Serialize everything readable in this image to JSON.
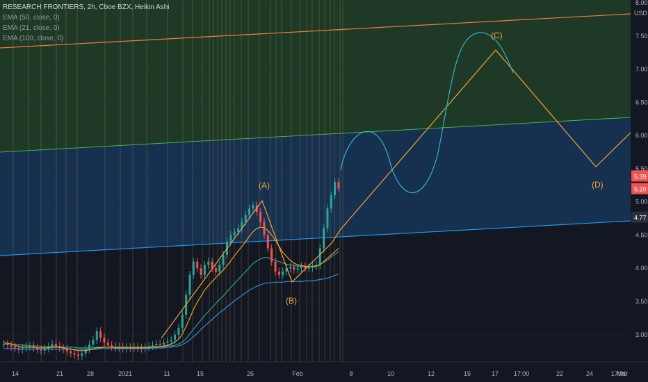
{
  "legend": {
    "title": "RESEARCH FRONTIERS, 2h, Cboe BZX, Heikin Ashi",
    "indicators": [
      "EMA (50, close, 0)",
      "EMA (21, close, 0)",
      "EMA (100, close, 0)"
    ]
  },
  "axis": {
    "currency": "USD"
  },
  "colors": {
    "background": "#131722",
    "green_zone": "#1e3a26",
    "blue_zone": "#16304f",
    "green_zone_line": "#4caf50",
    "blue_zone_line": "#2196f3",
    "top_line": "#f57c3c",
    "wave": "#f2a33a",
    "projection_curve": "#33b5c9",
    "ema50": "#2f9d8b",
    "ema21": "#f59a23",
    "ema100": "#2b8fe0",
    "up": "#26a69a",
    "down": "#ef5350"
  },
  "chart_data": {
    "type": "candlestick",
    "title": "RESEARCH FRONTIERS, 2h, Cboe BZX, Heikin Ashi",
    "y_axis": {
      "ticks": [
        "3.00",
        "3.50",
        "4.00",
        "4.50",
        "5.00",
        "5.50",
        "6.00",
        "6.50",
        "7.00",
        "7.50",
        "8.00"
      ],
      "ylim": [
        2.6,
        8.0
      ],
      "unit": "USD"
    },
    "x_axis": {
      "ticks": [
        "14",
        "21",
        "28",
        "2021",
        "11",
        "15",
        "25",
        "Feb",
        "8",
        "10",
        "12",
        "15",
        "17",
        "17:00",
        "22",
        "24",
        "17:00",
        "Mar"
      ]
    },
    "price_labels": [
      {
        "value": 5.39,
        "text": "5.39",
        "color": "#ef5350"
      },
      {
        "value": 5.2,
        "text": "5.20",
        "color": "#ef5350"
      },
      {
        "value": 4.77,
        "text": "4.77",
        "color": "#2a2e39"
      }
    ],
    "candles_close": [
      2.86,
      2.84,
      2.82,
      2.8,
      2.78,
      2.8,
      2.82,
      2.83,
      2.8,
      2.78,
      2.76,
      2.79,
      2.82,
      2.86,
      2.83,
      2.8,
      2.78,
      2.75,
      2.72,
      2.7,
      2.68,
      2.72,
      2.78,
      2.85,
      2.92,
      3.05,
      2.95,
      2.88,
      2.84,
      2.82,
      2.8,
      2.82,
      2.79,
      2.81,
      2.8,
      2.82,
      2.8,
      2.79,
      2.81,
      2.83,
      2.84,
      2.86,
      2.85,
      2.88,
      2.9,
      2.92,
      3.0,
      3.1,
      3.3,
      3.6,
      3.9,
      4.1,
      4.0,
      3.9,
      4.05,
      4.1,
      4.0,
      3.95,
      4.05,
      4.2,
      4.4,
      4.5,
      4.55,
      4.6,
      4.7,
      4.8,
      4.9,
      4.95,
      4.85,
      4.7,
      4.5,
      4.3,
      4.1,
      3.95,
      3.9,
      3.95,
      4.0,
      4.02,
      3.98,
      4.0,
      4.03,
      4.0,
      4.01,
      4.03,
      4.05,
      4.3,
      4.6,
      4.9,
      5.1,
      5.3,
      5.2
    ],
    "ema21": [
      2.88,
      2.87,
      2.86,
      2.84,
      2.82,
      2.81,
      2.81,
      2.81,
      2.81,
      2.8,
      2.8,
      2.8,
      2.8,
      2.81,
      2.81,
      2.81,
      2.8,
      2.79,
      2.78,
      2.77,
      2.76,
      2.76,
      2.76,
      2.77,
      2.78,
      2.8,
      2.8,
      2.81,
      2.81,
      2.81,
      2.8,
      2.8,
      2.8,
      2.8,
      2.8,
      2.8,
      2.8,
      2.8,
      2.8,
      2.8,
      2.81,
      2.81,
      2.82,
      2.83,
      2.84,
      2.86,
      2.89,
      2.93,
      3.01,
      3.12,
      3.25,
      3.38,
      3.49,
      3.58,
      3.67,
      3.74,
      3.8,
      3.86,
      3.92,
      3.97,
      4.04,
      4.11,
      4.19,
      4.26,
      4.33,
      4.4,
      4.48,
      4.55,
      4.6,
      4.62,
      4.61,
      4.57,
      4.5,
      4.42,
      4.33,
      4.24,
      4.18,
      4.12,
      4.08,
      4.05,
      4.04,
      4.03,
      4.02,
      4.02,
      4.03,
      4.05,
      4.1,
      4.15,
      4.2,
      4.25,
      4.3
    ],
    "ema50": [
      2.86,
      2.86,
      2.86,
      2.85,
      2.85,
      2.84,
      2.84,
      2.83,
      2.83,
      2.83,
      2.82,
      2.82,
      2.82,
      2.82,
      2.82,
      2.82,
      2.81,
      2.81,
      2.81,
      2.81,
      2.8,
      2.8,
      2.8,
      2.8,
      2.8,
      2.81,
      2.81,
      2.81,
      2.81,
      2.81,
      2.81,
      2.81,
      2.81,
      2.81,
      2.81,
      2.81,
      2.81,
      2.81,
      2.81,
      2.81,
      2.82,
      2.82,
      2.82,
      2.82,
      2.83,
      2.83,
      2.84,
      2.86,
      2.89,
      2.94,
      3.01,
      3.08,
      3.15,
      3.22,
      3.29,
      3.35,
      3.41,
      3.47,
      3.53,
      3.58,
      3.65,
      3.71,
      3.77,
      3.83,
      3.89,
      3.95,
      4.01,
      4.07,
      4.11,
      4.14,
      4.16,
      4.16,
      4.14,
      4.12,
      4.1,
      4.08,
      4.06,
      4.05,
      4.04,
      4.03,
      4.03,
      4.03,
      4.03,
      4.03,
      4.04,
      4.06,
      4.09,
      4.12,
      4.17,
      4.21,
      4.25
    ],
    "ema100": [
      2.79,
      2.79,
      2.79,
      2.79,
      2.78,
      2.78,
      2.78,
      2.78,
      2.78,
      2.78,
      2.78,
      2.78,
      2.78,
      2.78,
      2.78,
      2.78,
      2.78,
      2.78,
      2.78,
      2.78,
      2.78,
      2.78,
      2.78,
      2.78,
      2.78,
      2.78,
      2.79,
      2.79,
      2.79,
      2.79,
      2.79,
      2.79,
      2.79,
      2.79,
      2.79,
      2.79,
      2.79,
      2.79,
      2.79,
      2.79,
      2.79,
      2.8,
      2.8,
      2.8,
      2.81,
      2.81,
      2.82,
      2.83,
      2.85,
      2.88,
      2.92,
      2.97,
      3.02,
      3.08,
      3.13,
      3.18,
      3.23,
      3.28,
      3.33,
      3.37,
      3.42,
      3.46,
      3.51,
      3.55,
      3.59,
      3.63,
      3.67,
      3.7,
      3.73,
      3.75,
      3.77,
      3.78,
      3.78,
      3.79,
      3.79,
      3.79,
      3.8,
      3.8,
      3.8,
      3.8,
      3.8,
      3.81,
      3.81,
      3.81,
      3.82,
      3.83,
      3.84,
      3.85,
      3.87,
      3.89,
      3.92
    ],
    "wave_labels": [
      "(A)",
      "(B)",
      "(C)",
      "(D)"
    ],
    "wave_points": [
      {
        "label": "(A)",
        "value": 5.0
      },
      {
        "label": "(B)",
        "value": 3.78
      },
      {
        "label": "(C)",
        "value": 7.3
      },
      {
        "label": "(D)",
        "value": 5.5
      }
    ]
  }
}
